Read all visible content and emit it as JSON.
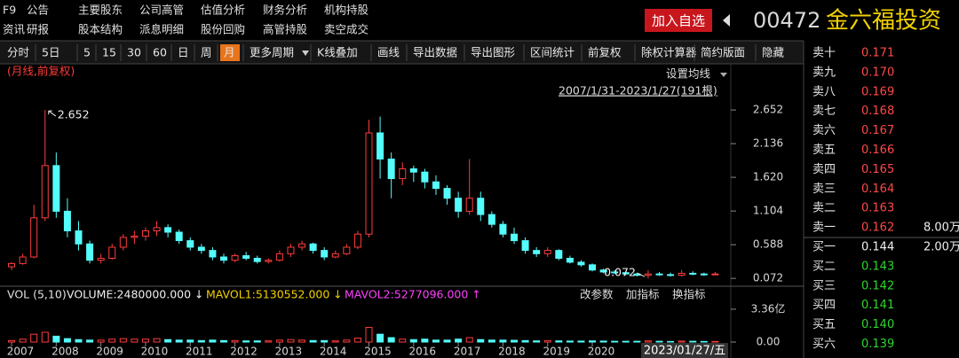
{
  "menu": {
    "row1": [
      "F9",
      "公告",
      "主要股东",
      "公司高管",
      "估值分析",
      "财务分析",
      "机构持股"
    ],
    "row2": [
      "资讯",
      "研报",
      "股本结构",
      "派息明细",
      "股份回购",
      "高管持股",
      "卖空成交"
    ]
  },
  "header": {
    "button": "加入自选",
    "code": "00472",
    "name": "金六福投资"
  },
  "toolbar": [
    "分时",
    "5日",
    "5",
    "15",
    "30",
    "60",
    "日",
    "周",
    "月",
    "更多周期",
    "K线叠加",
    "画线",
    "导出数据",
    "导出图形",
    "区间统计",
    "前复权",
    "除权计算器",
    "简约版面",
    "隐藏"
  ],
  "chart_data": {
    "type": "candlestick",
    "period_label": "(月线,前复权)",
    "ma_setting": "设置均线",
    "range_label": "2007/1/31-2023/1/27(191根)",
    "cursor_label": "2023/01/27/五",
    "up_color": "#ff3c3c",
    "down_color": "#54fcfc",
    "x": [
      2007,
      2007.25,
      2007.5,
      2007.75,
      2008,
      2008.25,
      2008.5,
      2008.75,
      2009,
      2009.25,
      2009.5,
      2009.75,
      2010,
      2010.25,
      2010.5,
      2010.75,
      2011,
      2011.25,
      2011.5,
      2011.75,
      2012,
      2012.25,
      2012.5,
      2012.75,
      2013,
      2013.25,
      2013.5,
      2013.75,
      2014,
      2014.25,
      2014.5,
      2014.75,
      2015,
      2015.25,
      2015.5,
      2015.75,
      2016,
      2016.25,
      2016.5,
      2016.75,
      2017,
      2017.25,
      2017.5,
      2017.75,
      2018,
      2018.25,
      2018.5,
      2018.75,
      2019,
      2019.25,
      2019.5,
      2019.75,
      2020,
      2020.25,
      2020.5,
      2020.75,
      2021,
      2021.25,
      2021.5,
      2021.75,
      2022,
      2022.25,
      2022.5,
      2022.75
    ],
    "open": [
      0.25,
      0.3,
      0.4,
      1.0,
      1.8,
      1.1,
      0.8,
      0.6,
      0.35,
      0.38,
      0.55,
      0.7,
      0.72,
      0.8,
      0.85,
      0.78,
      0.65,
      0.55,
      0.5,
      0.4,
      0.35,
      0.42,
      0.38,
      0.33,
      0.35,
      0.45,
      0.55,
      0.6,
      0.5,
      0.4,
      0.45,
      0.55,
      0.75,
      2.3,
      1.9,
      1.6,
      1.75,
      1.7,
      1.55,
      1.45,
      1.3,
      1.1,
      1.3,
      1.05,
      0.9,
      0.75,
      0.65,
      0.5,
      0.45,
      0.5,
      0.38,
      0.32,
      0.28,
      0.2,
      0.17,
      0.16,
      0.14,
      0.12,
      0.14,
      0.13,
      0.12,
      0.15,
      0.14,
      0.13
    ],
    "high": [
      0.32,
      0.45,
      1.2,
      2.652,
      2.0,
      1.3,
      0.95,
      0.65,
      0.45,
      0.6,
      0.75,
      0.8,
      0.85,
      0.95,
      0.9,
      0.82,
      0.7,
      0.6,
      0.55,
      0.45,
      0.45,
      0.48,
      0.42,
      0.38,
      0.5,
      0.6,
      0.65,
      0.62,
      0.55,
      0.5,
      0.6,
      0.8,
      2.5,
      2.55,
      2.0,
      1.85,
      1.8,
      1.75,
      1.65,
      1.5,
      1.4,
      1.9,
      1.4,
      1.1,
      0.95,
      0.85,
      0.7,
      0.55,
      0.55,
      0.52,
      0.42,
      0.35,
      0.3,
      0.22,
      0.2,
      0.18,
      0.16,
      0.2,
      0.17,
      0.16,
      0.2,
      0.18,
      0.16,
      0.17
    ],
    "low": [
      0.2,
      0.28,
      0.38,
      0.95,
      1.0,
      0.7,
      0.5,
      0.3,
      0.3,
      0.36,
      0.5,
      0.6,
      0.65,
      0.72,
      0.7,
      0.6,
      0.5,
      0.45,
      0.35,
      0.3,
      0.32,
      0.35,
      0.3,
      0.3,
      0.33,
      0.4,
      0.5,
      0.45,
      0.35,
      0.38,
      0.43,
      0.52,
      0.7,
      1.6,
      1.3,
      1.5,
      1.55,
      1.45,
      1.35,
      1.2,
      1.0,
      1.05,
      0.95,
      0.85,
      0.7,
      0.6,
      0.45,
      0.4,
      0.4,
      0.35,
      0.3,
      0.25,
      0.18,
      0.15,
      0.14,
      0.12,
      0.1,
      0.072,
      0.11,
      0.1,
      0.1,
      0.12,
      0.11,
      0.12
    ],
    "close": [
      0.3,
      0.4,
      1.0,
      1.8,
      1.1,
      0.8,
      0.6,
      0.35,
      0.38,
      0.55,
      0.7,
      0.72,
      0.8,
      0.85,
      0.78,
      0.65,
      0.55,
      0.5,
      0.4,
      0.35,
      0.42,
      0.38,
      0.33,
      0.35,
      0.45,
      0.55,
      0.6,
      0.5,
      0.4,
      0.45,
      0.55,
      0.75,
      2.3,
      1.9,
      1.6,
      1.75,
      1.7,
      1.55,
      1.45,
      1.3,
      1.1,
      1.3,
      1.05,
      0.9,
      0.75,
      0.65,
      0.5,
      0.45,
      0.5,
      0.38,
      0.32,
      0.28,
      0.2,
      0.17,
      0.16,
      0.14,
      0.12,
      0.14,
      0.13,
      0.12,
      0.15,
      0.14,
      0.13,
      0.14
    ],
    "xlim": [
      2006.9,
      2023.1
    ],
    "xticks": [
      2007,
      2008,
      2009,
      2010,
      2011,
      2012,
      2013,
      2014,
      2015,
      2016,
      2017,
      2018,
      2019,
      2020
    ],
    "ylim": [
      0.02,
      3.25
    ],
    "yticks": [
      2.652,
      2.136,
      {
        "value": 1.62,
        "label": "1.620"
      },
      1.104,
      0.588,
      0.072
    ],
    "volume": {
      "header": [
        "VOL (5,10)",
        "VOLUME:2480000.000 ↓",
        "MAVOL1:5130552.000 ↓",
        "MAVOL2:5277096.000 ↑"
      ],
      "buttons": [
        "改参数",
        "加指标",
        "换指标"
      ],
      "values": [
        0.15,
        0.3,
        0.8,
        1.0,
        0.6,
        0.35,
        0.25,
        0.2,
        0.2,
        0.3,
        0.35,
        0.3,
        0.3,
        0.35,
        0.25,
        0.2,
        0.2,
        0.15,
        0.2,
        0.15,
        0.15,
        0.12,
        0.12,
        0.12,
        0.2,
        0.25,
        0.2,
        0.15,
        0.15,
        0.12,
        0.2,
        0.4,
        1.5,
        0.8,
        0.45,
        0.3,
        0.25,
        0.3,
        0.2,
        0.2,
        0.3,
        0.45,
        0.25,
        0.2,
        0.2,
        0.18,
        0.15,
        0.12,
        0.15,
        0.12,
        0.1,
        0.1,
        0.12,
        0.1,
        0.08,
        0.08,
        0.08,
        0.12,
        0.08,
        0.06,
        0.1,
        0.08,
        0.06,
        0.06
      ],
      "vlim": [
        0,
        4.35
      ],
      "vticks": [
        {
          "value": 3.36,
          "label": "3.36亿"
        },
        {
          "value": 0,
          "label": "0.00"
        }
      ]
    }
  },
  "order_book": {
    "asks": [
      [
        "卖十",
        "0.171"
      ],
      [
        "卖九",
        "0.170"
      ],
      [
        "卖八",
        "0.169"
      ],
      [
        "卖七",
        "0.168"
      ],
      [
        "卖六",
        "0.167"
      ],
      [
        "卖五",
        "0.166"
      ],
      [
        "卖四",
        "0.165"
      ],
      [
        "卖三",
        "0.164"
      ],
      [
        "卖二",
        "0.163"
      ],
      [
        "卖一",
        "0.162",
        "8.00万"
      ]
    ],
    "bids": [
      [
        "买一",
        "0.144",
        "2.00万"
      ],
      [
        "买二",
        "0.143"
      ],
      [
        "买三",
        "0.142"
      ],
      [
        "买四",
        "0.141"
      ],
      [
        "买五",
        "0.140"
      ],
      [
        "买六",
        "0.139"
      ]
    ]
  }
}
